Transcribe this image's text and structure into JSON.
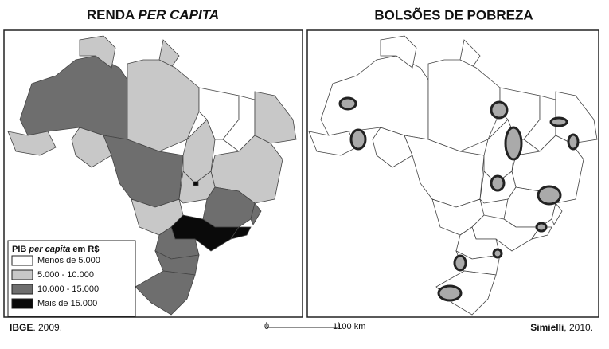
{
  "left_map": {
    "title": {
      "parts": [
        "RENDA ",
        "PER CAPITA"
      ]
    },
    "legend": {
      "title": {
        "parts": [
          "PIB ",
          "per capita",
          " em R$"
        ]
      },
      "items": [
        {
          "label": "Menos de 5.000",
          "color": "#ffffff"
        },
        {
          "label": "5.000 - 10.000",
          "color": "#c8c8c8"
        },
        {
          "label": "10.000 - 15.000",
          "color": "#6e6e6e"
        },
        {
          "label": "Mais de 15.000",
          "color": "#0a0a0a"
        }
      ]
    }
  },
  "right_map": {
    "title": "BOLSÕES DE POBREZA"
  },
  "footer": {
    "source_left": {
      "parts": [
        "IBGE",
        ". 2009."
      ]
    },
    "scale": {
      "start": "0",
      "end": "1100 km"
    },
    "source_right": {
      "parts": [
        "Simielli",
        ", 2010."
      ]
    }
  }
}
